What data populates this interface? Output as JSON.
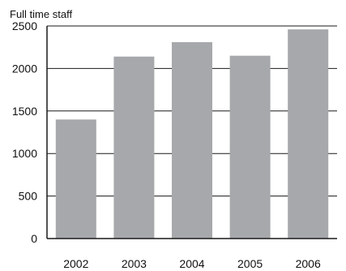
{
  "chart_data": {
    "type": "bar",
    "title": "",
    "ylabel": "Full time staff",
    "xlabel": "",
    "categories": [
      "2002",
      "2003",
      "2004",
      "2005",
      "2006"
    ],
    "values": [
      1400,
      2140,
      2310,
      2150,
      2460
    ],
    "ylim": [
      0,
      2500
    ],
    "yticks": [
      "0",
      "500",
      "1000",
      "1500",
      "2000",
      "2500"
    ],
    "grid": "horizontal lines at y ticks",
    "bar_color": "#a7a8ab",
    "axis_color": "#1a1a1a"
  }
}
